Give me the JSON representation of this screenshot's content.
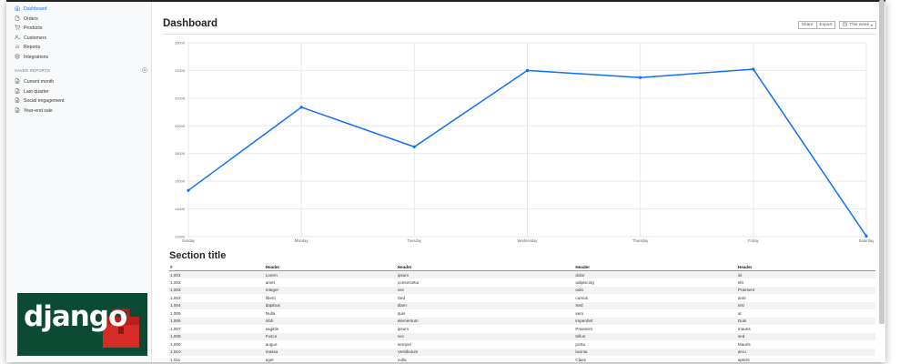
{
  "sidebar": {
    "items": [
      {
        "label": "Dashboard",
        "icon": "home-icon",
        "active": true
      },
      {
        "label": "Orders",
        "icon": "file-icon"
      },
      {
        "label": "Products",
        "icon": "cart-icon"
      },
      {
        "label": "Customers",
        "icon": "users-icon"
      },
      {
        "label": "Reports",
        "icon": "bar-chart-icon"
      },
      {
        "label": "Integrations",
        "icon": "layers-icon"
      }
    ],
    "saved_reports_heading": "SAVED REPORTS",
    "saved_reports": [
      {
        "label": "Current month",
        "icon": "file-text-icon"
      },
      {
        "label": "Last quarter",
        "icon": "file-text-icon"
      },
      {
        "label": "Social engagement",
        "icon": "file-text-icon"
      },
      {
        "label": "Year-end sale",
        "icon": "file-text-icon"
      }
    ]
  },
  "header": {
    "title": "Dashboard",
    "share_label": "Share",
    "export_label": "Export",
    "period_label": "This week"
  },
  "chart_data": {
    "type": "line",
    "categories": [
      "Sunday",
      "Monday",
      "Tuesday",
      "Wednesday",
      "Thursday",
      "Friday",
      "Saturday"
    ],
    "values": [
      15339,
      21345,
      18483,
      24003,
      23489,
      24092,
      12034
    ],
    "ylim": [
      12000,
      26000
    ],
    "yticks": [
      "12000",
      "14000",
      "16000",
      "18000",
      "20000",
      "22000",
      "24000",
      "26000"
    ],
    "grid": true,
    "color": "#0d6efd",
    "title": "",
    "xlabel": "",
    "ylabel": ""
  },
  "section": {
    "title": "Section title",
    "columns": [
      "#",
      "Header",
      "Header",
      "Header",
      "Header"
    ],
    "rows": [
      [
        "1,001",
        "Lorem",
        "ipsum",
        "dolor",
        "sit"
      ],
      [
        "1,002",
        "amet",
        "consectetur",
        "adipiscing",
        "elit"
      ],
      [
        "1,003",
        "Integer",
        "nec",
        "odio",
        "Praesent"
      ],
      [
        "1,003",
        "libero",
        "Sed",
        "cursus",
        "ante"
      ],
      [
        "1,004",
        "dapibus",
        "diam",
        "Sed",
        "nisi"
      ],
      [
        "1,005",
        "Nulla",
        "quis",
        "sem",
        "at"
      ],
      [
        "1,006",
        "nibh",
        "elementum",
        "imperdiet",
        "Duis"
      ],
      [
        "1,007",
        "sagittis",
        "ipsum",
        "Praesent",
        "mauris"
      ],
      [
        "1,008",
        "Fusce",
        "nec",
        "tellus",
        "sed"
      ],
      [
        "1,009",
        "augue",
        "semper",
        "porta",
        "Mauris"
      ],
      [
        "1,010",
        "massa",
        "Vestibulum",
        "lacinia",
        "arcu"
      ],
      [
        "1,011",
        "eget",
        "nulla",
        "Class",
        "aptent"
      ]
    ]
  },
  "logo": {
    "text": "django"
  }
}
